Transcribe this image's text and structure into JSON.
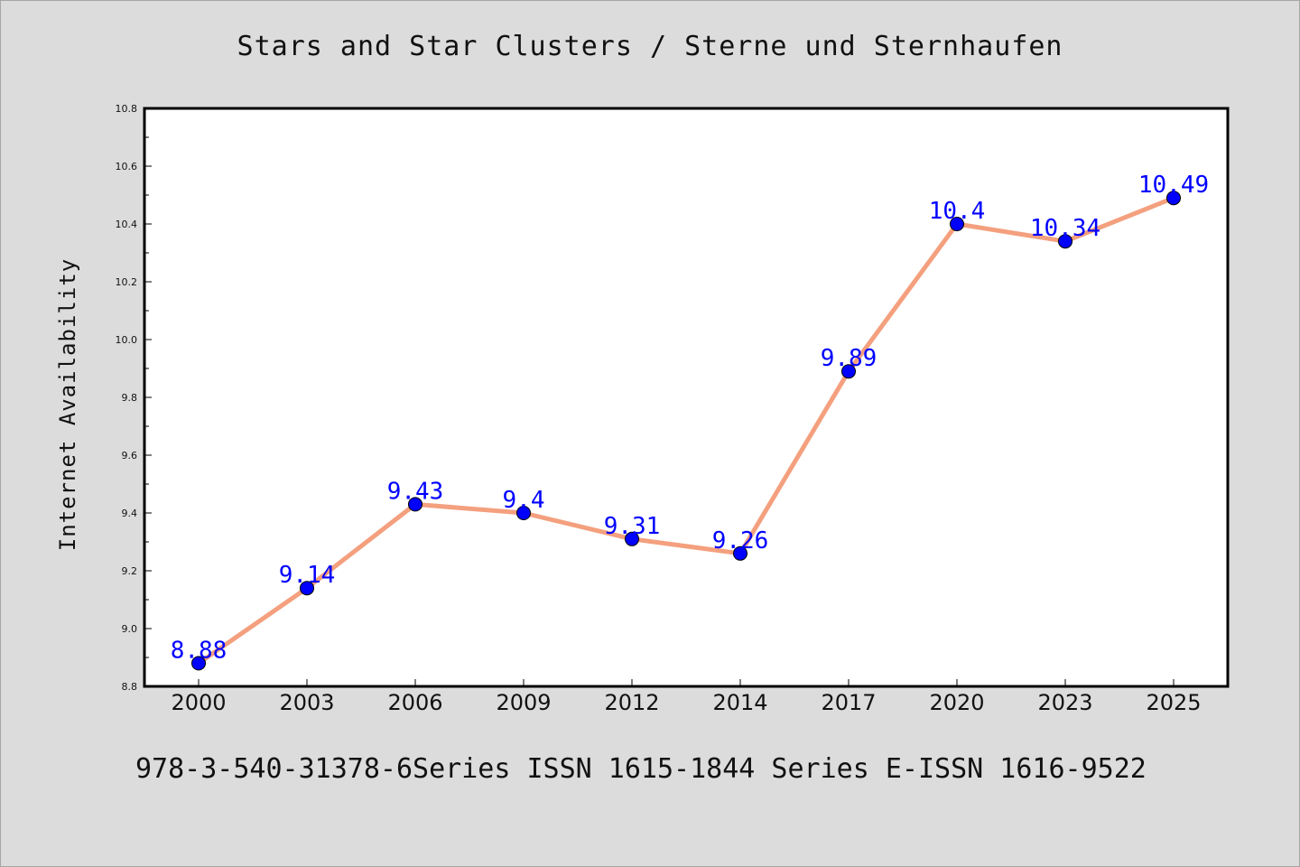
{
  "chart_data": {
    "type": "line",
    "title": "Stars and Star Clusters / Sterne und Sternhaufen",
    "xlabel": "",
    "ylabel": "Internet Availability",
    "categories": [
      "2000",
      "2003",
      "2006",
      "2009",
      "2012",
      "2014",
      "2017",
      "2020",
      "2023",
      "2025"
    ],
    "series": [
      {
        "values": [
          8.88,
          9.14,
          9.43,
          9.4,
          9.31,
          9.26,
          9.89,
          10.4,
          10.34,
          10.49
        ],
        "labels": [
          "8.88",
          "9.14",
          "9.43",
          "9.4",
          "9.31",
          "9.26",
          "9.89",
          "10.4",
          "10.34",
          "10.49"
        ],
        "line_color": "#f4a07e",
        "marker_color": "#0000ff"
      }
    ],
    "ylim": [
      8.8,
      10.8
    ],
    "yticks": [
      8.8,
      9.0,
      9.2,
      9.4,
      9.6,
      9.8,
      10.0,
      10.2,
      10.4,
      10.6,
      10.8
    ],
    "ytick_labels": [
      "8.8",
      "9.0",
      "9.2",
      "9.4",
      "9.6",
      "9.8",
      "10.0",
      "10.2",
      "10.4",
      "10.6",
      "10.8"
    ],
    "grid": false,
    "legend": "none"
  },
  "footer": {
    "text": "978-3-540-31378-6Series ISSN 1615-1844 Series E-ISSN 1616-9522"
  },
  "colors": {
    "background": "#dcdcdc",
    "plot_background": "#ffffff",
    "line": "#f4a07e",
    "marker": "#0000ff",
    "data_label": "#0000ff"
  }
}
